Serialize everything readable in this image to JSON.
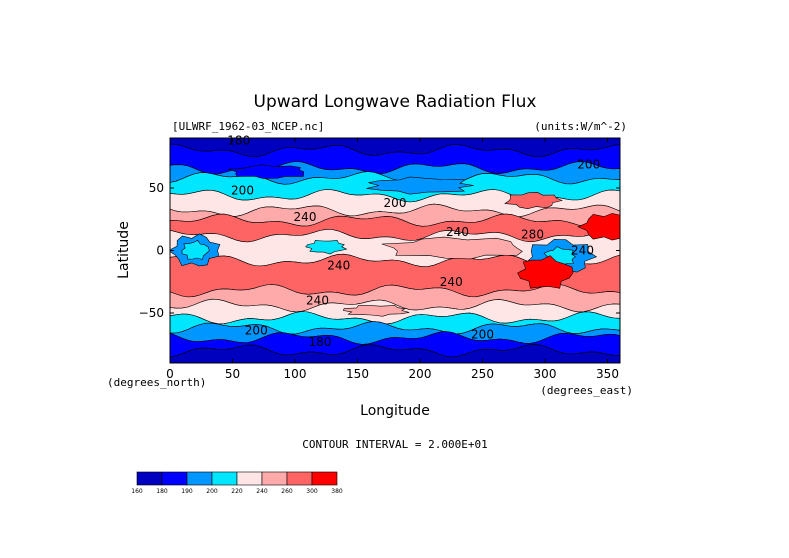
{
  "chart_data": {
    "type": "heatmap",
    "title": "Upward Longwave Radiation Flux",
    "source_label": "[ULWRF_1962-03_NCEP.nc]",
    "units_label": "(units:W/m^-2)",
    "xlabel": "Longitude",
    "ylabel": "Latitude",
    "x_unit_label": "(degrees_east)",
    "y_unit_label": "(degrees_north)",
    "xlim": [
      0,
      360
    ],
    "ylim": [
      -90,
      90
    ],
    "x_ticks": [
      {
        "value": 0,
        "label": "0"
      },
      {
        "value": 50,
        "label": "50"
      },
      {
        "value": 100,
        "label": "100"
      },
      {
        "value": 150,
        "label": "150"
      },
      {
        "value": 200,
        "label": "200"
      },
      {
        "value": 250,
        "label": "250"
      },
      {
        "value": 300,
        "label": "300"
      },
      {
        "value": 350,
        "label": "350"
      }
    ],
    "y_ticks": [
      {
        "value": 50,
        "label": "50"
      },
      {
        "value": 0,
        "label": "0"
      },
      {
        "value": -50,
        "label": "−50"
      }
    ],
    "contour_interval_text": "CONTOUR INTERVAL = 2.000E+01",
    "contour_labels": [
      {
        "lon": 58,
        "lat": 48,
        "text": "200"
      },
      {
        "lon": 180,
        "lat": 38,
        "text": "200"
      },
      {
        "lon": 335,
        "lat": 69,
        "text": "200"
      },
      {
        "lon": 108,
        "lat": 27,
        "text": "240"
      },
      {
        "lon": 230,
        "lat": 15,
        "text": "240"
      },
      {
        "lon": 290,
        "lat": 13,
        "text": "280"
      },
      {
        "lon": 330,
        "lat": 0,
        "text": "240"
      },
      {
        "lon": 135,
        "lat": -12,
        "text": "240"
      },
      {
        "lon": 225,
        "lat": -25,
        "text": "240"
      },
      {
        "lon": 118,
        "lat": -40,
        "text": "240"
      },
      {
        "lon": 69,
        "lat": -64,
        "text": "200"
      },
      {
        "lon": 250,
        "lat": -67,
        "text": "200"
      },
      {
        "lon": 120,
        "lat": -73,
        "text": "180"
      },
      {
        "lon": 55,
        "lat": 88,
        "text": "180"
      }
    ],
    "colorbar": {
      "ticks": [
        "160",
        "180",
        "190",
        "200",
        "220",
        "240",
        "260",
        "300",
        "380"
      ],
      "colors": [
        "#0000bf",
        "#0000ff",
        "#0096ff",
        "#00e6ff",
        "#ffe6e6",
        "#ffaaaa",
        "#ff6464",
        "#ff0000"
      ]
    },
    "bands": [
      {
        "lat_top": 90,
        "lat_bottom": 80,
        "color": "#0000bf"
      },
      {
        "lat_top": 80,
        "lat_bottom": 66,
        "color": "#0000ff"
      },
      {
        "lat_top": 66,
        "lat_bottom": 58,
        "color": "#0096ff"
      },
      {
        "lat_top": 58,
        "lat_bottom": 44,
        "color": "#00e6ff"
      },
      {
        "lat_top": 44,
        "lat_bottom": 32,
        "color": "#ffe6e6"
      },
      {
        "lat_top": 32,
        "lat_bottom": 24,
        "color": "#ffaaaa"
      },
      {
        "lat_top": 24,
        "lat_bottom": 12,
        "color": "#ff6464"
      },
      {
        "lat_top": 12,
        "lat_bottom": -8,
        "color": "#ffe6e6"
      },
      {
        "lat_top": -8,
        "lat_bottom": -32,
        "color": "#ff6464"
      },
      {
        "lat_top": -32,
        "lat_bottom": -44,
        "color": "#ffaaaa"
      },
      {
        "lat_top": -44,
        "lat_bottom": -54,
        "color": "#ffe6e6"
      },
      {
        "lat_top": -54,
        "lat_bottom": -62,
        "color": "#00e6ff"
      },
      {
        "lat_top": -62,
        "lat_bottom": -70,
        "color": "#0096ff"
      },
      {
        "lat_top": -70,
        "lat_bottom": -80,
        "color": "#0000ff"
      },
      {
        "lat_top": -80,
        "lat_bottom": -90,
        "color": "#0000bf"
      }
    ],
    "patches": [
      {
        "lon": 20,
        "lat": 0,
        "rlon": 18,
        "rlat": 12,
        "color": "#0096ff"
      },
      {
        "lon": 20,
        "lat": 0,
        "rlon": 10,
        "rlat": 7,
        "color": "#00e6ff"
      },
      {
        "lon": 312,
        "lat": -5,
        "rlon": 25,
        "rlat": 13,
        "color": "#0096ff"
      },
      {
        "lon": 312,
        "lat": -5,
        "rlon": 12,
        "rlat": 7,
        "color": "#00e6ff"
      },
      {
        "lon": 230,
        "lat": 2,
        "rlon": 55,
        "rlat": 8,
        "color": "#ffaaaa"
      },
      {
        "lon": 125,
        "lat": 3,
        "rlon": 15,
        "rlat": 5,
        "color": "#00e6ff"
      },
      {
        "lon": 350,
        "lat": 19,
        "rlon": 20,
        "rlat": 10,
        "color": "#ff0000"
      },
      {
        "lon": 300,
        "lat": -18,
        "rlon": 20,
        "rlat": 12,
        "color": "#ff0000"
      },
      {
        "lon": 290,
        "lat": 40,
        "rlon": 20,
        "rlat": 6,
        "color": "#ff6464"
      },
      {
        "lon": 200,
        "lat": 52,
        "rlon": 40,
        "rlat": 6,
        "color": "#0096ff"
      },
      {
        "lon": 80,
        "lat": 63,
        "rlon": 30,
        "rlat": 5,
        "color": "#0000ff"
      },
      {
        "lon": 165,
        "lat": -48,
        "rlon": 25,
        "rlat": 4,
        "color": "#ffaaaa"
      }
    ]
  }
}
